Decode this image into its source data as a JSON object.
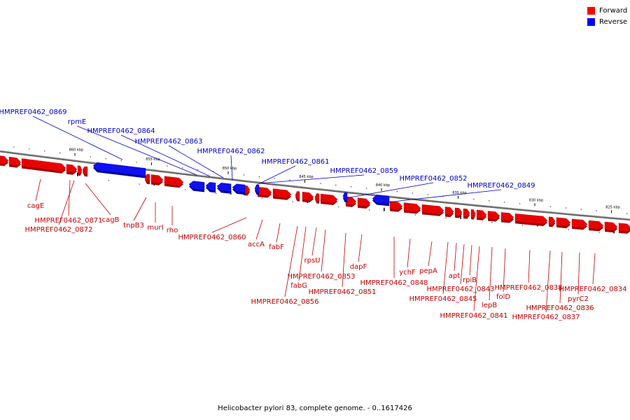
{
  "legend": [
    {
      "label": "Forward",
      "color": "#ff0000"
    },
    {
      "label": "Reverse",
      "color": "#0000ff"
    }
  ],
  "colors": {
    "forward": "#e80000",
    "forward_shade": "#a00000",
    "reverse": "#1010f0",
    "reverse_shade": "#0000a0",
    "forward_text": "#c00000",
    "reverse_text": "#0000c0",
    "backbone": "#808080"
  },
  "caption": "Helicobacter pylori 83, complete genome. - 0..1617426",
  "ticks": [
    {
      "kbp": 860,
      "label": "860 kbp"
    },
    {
      "kbp": 855,
      "label": "855 kbp"
    },
    {
      "kbp": 850,
      "label": "850 kbp"
    },
    {
      "kbp": 845,
      "label": "845 kbp"
    },
    {
      "kbp": 840,
      "label": "840 kbp"
    },
    {
      "kbp": 835,
      "label": "835 kbp"
    },
    {
      "kbp": 830,
      "label": "830 kbp"
    },
    {
      "kbp": 825,
      "label": "825 kbp"
    }
  ],
  "reverse_genes": [
    "HMPREF0462_0869",
    "rpmE",
    "HMPREF0462_0864",
    "HMPREF0462_0863",
    "HMPREF0462_0862",
    "HMPREF0462_0861",
    "HMPREF0462_0859",
    "HMPREF0462_0852",
    "HMPREF0462_0849"
  ],
  "forward_genes": [
    "cagE",
    "HMPREF0462_0871",
    "HMPREF0462_0872",
    "cagB",
    "tnpB3",
    "murI",
    "rho",
    "HMPREF0462_0860",
    "accA",
    "fabF",
    "HMPREF0462_0856",
    "fabG",
    "rpsU",
    "HMPREF0462_0853",
    "HMPREF0462_0851",
    "dapF",
    "HMPREF0462_0848",
    "ychF",
    "pepA",
    "HMPREF0462_0845",
    "apt",
    "HMPREF0462_0843",
    "rpiB",
    "HMPREF0462_0841",
    "lepB",
    "folD",
    "HMPREF0462_0838",
    "HMPREF0462_0837",
    "HMPREF0462_0836",
    "pyrC2",
    "HMPREF0462_0834"
  ]
}
